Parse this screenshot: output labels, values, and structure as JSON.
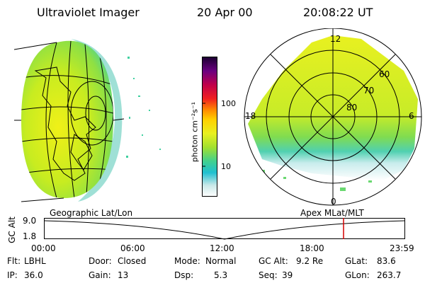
{
  "header": {
    "instrument": "Ultraviolet Imager",
    "date": "20 Apr 00",
    "time": "20:08:22 UT"
  },
  "colorbar": {
    "unit_label": "photon cm⁻²s⁻¹",
    "ticks": [
      "100",
      "10"
    ]
  },
  "polar_plot": {
    "lat_labels": [
      "60",
      "70",
      "80"
    ],
    "mlt_labels": [
      "12",
      "18",
      "6",
      "0"
    ]
  },
  "panels": {
    "left_label": "Geographic Lat/Lon",
    "right_label": "Apex MLat/MLT"
  },
  "timeline": {
    "ylabel": "GC Alt",
    "y_ticks": [
      "9.0",
      "1.8"
    ],
    "x_ticks": [
      "00:00",
      "06:00",
      "12:00",
      "18:00",
      "23:59"
    ],
    "marker_color": "#d40000"
  },
  "info": {
    "row1": [
      {
        "label": "Flt:",
        "value": "LBHL"
      },
      {
        "label": "Door:",
        "value": "Closed"
      },
      {
        "label": "Mode:",
        "value": "Normal"
      },
      {
        "label": "GC Alt:",
        "value": "9.2 Re"
      },
      {
        "label": "GLat:",
        "value": "83.6"
      }
    ],
    "row2": [
      {
        "label": "IP:",
        "value": "36.0"
      },
      {
        "label": "Gain:",
        "value": "13"
      },
      {
        "label": "Dsp:",
        "value": "5.3"
      },
      {
        "label": "Seq:",
        "value": "39"
      },
      {
        "label": "GLon:",
        "value": "263.7"
      }
    ]
  }
}
